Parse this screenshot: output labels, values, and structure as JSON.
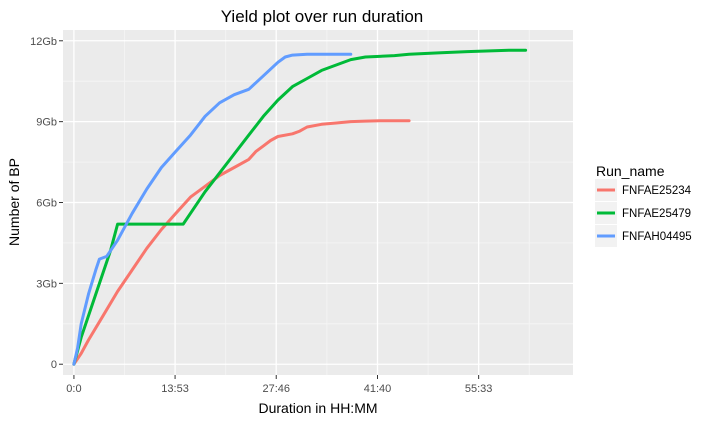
{
  "chart_data": {
    "type": "line",
    "title": "Yield plot over run duration",
    "xlabel": "Duration in HH:MM",
    "ylabel": "Number of BP",
    "x_unit": "hours",
    "xlim": [
      -1.5,
      68.5
    ],
    "ylim": [
      -0.4,
      12.4
    ],
    "x_ticks": [
      {
        "value": 0,
        "label": "0:0"
      },
      {
        "value": 13.883,
        "label": "13:53"
      },
      {
        "value": 27.767,
        "label": "27:46"
      },
      {
        "value": 41.667,
        "label": "41:40"
      },
      {
        "value": 55.55,
        "label": "55:33"
      }
    ],
    "y_ticks": [
      {
        "value": 0,
        "label": "0"
      },
      {
        "value": 3,
        "label": "3Gb"
      },
      {
        "value": 6,
        "label": "6Gb"
      },
      {
        "value": 9,
        "label": "9Gb"
      },
      {
        "value": 12,
        "label": "12Gb"
      }
    ],
    "y_unit": "Gb",
    "grid": true,
    "legend_title": "Run_name",
    "legend_position": "right",
    "series": [
      {
        "name": "FNFAE25234",
        "color": "#F8766D",
        "points": [
          [
            0,
            0
          ],
          [
            1,
            0.4
          ],
          [
            2,
            0.9
          ],
          [
            4,
            1.8
          ],
          [
            6,
            2.7
          ],
          [
            8,
            3.5
          ],
          [
            10,
            4.3
          ],
          [
            12,
            5.0
          ],
          [
            14,
            5.6
          ],
          [
            16,
            6.2
          ],
          [
            18,
            6.6
          ],
          [
            20,
            7.0
          ],
          [
            22,
            7.3
          ],
          [
            24,
            7.6
          ],
          [
            25,
            7.9
          ],
          [
            26,
            8.1
          ],
          [
            27,
            8.3
          ],
          [
            28,
            8.45
          ],
          [
            30,
            8.55
          ],
          [
            31,
            8.65
          ],
          [
            32,
            8.8
          ],
          [
            34,
            8.9
          ],
          [
            36,
            8.95
          ],
          [
            38,
            9.0
          ],
          [
            40,
            9.02
          ],
          [
            42,
            9.03
          ],
          [
            44,
            9.03
          ],
          [
            46,
            9.03
          ]
        ]
      },
      {
        "name": "FNFAE25479",
        "color": "#00BA38",
        "points": [
          [
            0,
            0
          ],
          [
            0.5,
            0.5
          ],
          [
            1,
            1.0
          ],
          [
            3,
            2.6
          ],
          [
            5,
            4.2
          ],
          [
            6,
            5.2
          ],
          [
            8,
            5.2
          ],
          [
            10,
            5.2
          ],
          [
            12,
            5.2
          ],
          [
            15,
            5.2
          ],
          [
            16,
            5.6
          ],
          [
            18,
            6.4
          ],
          [
            20,
            7.1
          ],
          [
            22,
            7.8
          ],
          [
            24,
            8.5
          ],
          [
            26,
            9.2
          ],
          [
            28,
            9.8
          ],
          [
            30,
            10.3
          ],
          [
            32,
            10.6
          ],
          [
            34,
            10.9
          ],
          [
            36,
            11.1
          ],
          [
            38,
            11.3
          ],
          [
            40,
            11.4
          ],
          [
            44,
            11.45
          ],
          [
            46,
            11.5
          ],
          [
            50,
            11.55
          ],
          [
            54,
            11.6
          ],
          [
            60,
            11.65
          ],
          [
            62,
            11.65
          ]
        ]
      },
      {
        "name": "FNFAH04495",
        "color": "#619CFF",
        "points": [
          [
            0,
            0
          ],
          [
            0.5,
            0.6
          ],
          [
            1,
            1.5
          ],
          [
            2,
            2.6
          ],
          [
            3,
            3.5
          ],
          [
            3.5,
            3.9
          ],
          [
            4.5,
            4.0
          ],
          [
            6,
            4.6
          ],
          [
            8,
            5.6
          ],
          [
            10,
            6.5
          ],
          [
            12,
            7.3
          ],
          [
            14,
            7.9
          ],
          [
            16,
            8.5
          ],
          [
            18,
            9.2
          ],
          [
            20,
            9.7
          ],
          [
            22,
            10.0
          ],
          [
            24,
            10.2
          ],
          [
            26,
            10.7
          ],
          [
            28,
            11.2
          ],
          [
            29,
            11.4
          ],
          [
            30,
            11.47
          ],
          [
            32,
            11.5
          ],
          [
            36,
            11.5
          ],
          [
            38,
            11.5
          ]
        ]
      }
    ]
  }
}
